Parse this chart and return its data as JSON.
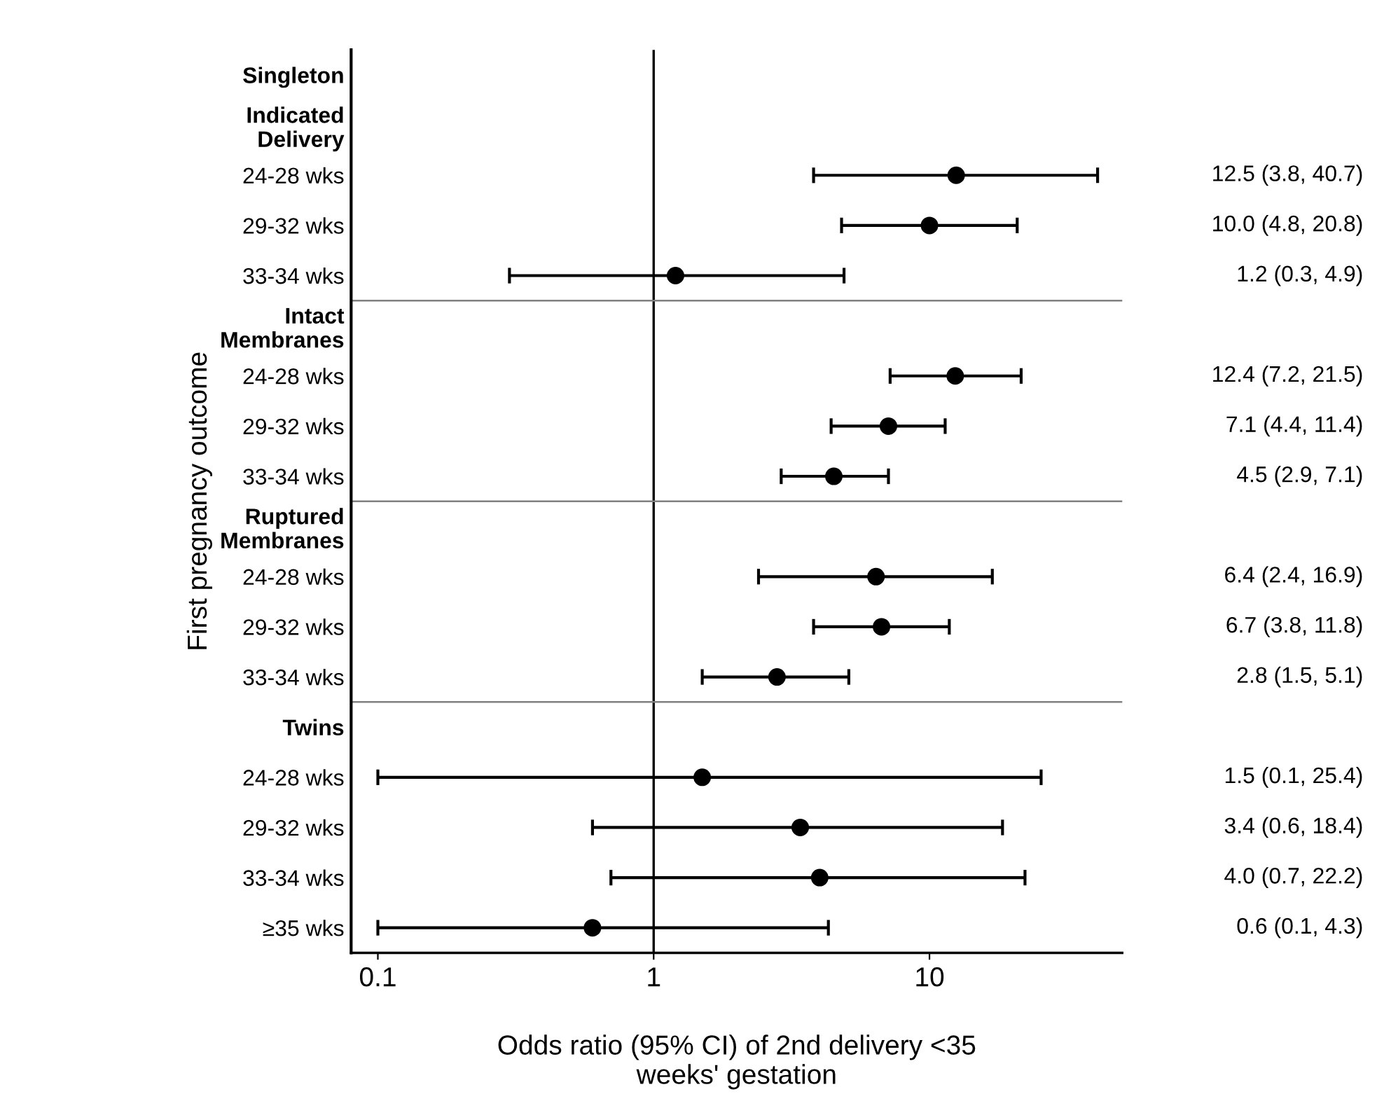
{
  "chart_data": {
    "type": "scatter",
    "orientation": "horizontal",
    "xlabel": "Odds ratio (95% CI) of 2nd delivery <35\nweeks' gestation",
    "ylabel": "First pregnancy outcome",
    "categories": [
      "Singleton",
      "Indicated\nDelivery",
      "24-28 wks",
      "29-32 wks",
      "33-34 wks",
      "Intact\nMembranes",
      "24-28 wks",
      "29-32 wks",
      "33-34 wks",
      "Ruptured\nMembranes",
      "24-28 wks",
      "29-32 wks",
      "33-34 wks",
      "Twins",
      "24-28 wks",
      "29-32 wks",
      "33-34 wks",
      "≥35 wks"
    ],
    "series": [
      {
        "color": "#000000",
        "values": [
          null,
          null,
          12.5,
          10.0,
          1.2,
          null,
          12.4,
          7.1,
          4.5,
          null,
          6.4,
          6.7,
          2.8,
          null,
          1.5,
          3.4,
          4.0,
          0.6
        ],
        "errors": [
          null,
          null,
          [
            3.8,
            40.7
          ],
          [
            4.8,
            20.8
          ],
          [
            0.3,
            4.9
          ],
          null,
          [
            7.2,
            21.5
          ],
          [
            4.4,
            11.4
          ],
          [
            2.9,
            7.1
          ],
          null,
          [
            2.4,
            16.9
          ],
          [
            3.8,
            11.8
          ],
          [
            1.5,
            5.1
          ],
          null,
          [
            0.1,
            25.4
          ],
          [
            0.6,
            18.4
          ],
          [
            0.7,
            22.2
          ],
          [
            0.1,
            4.3
          ]
        ],
        "value_labels": [
          null,
          null,
          "12.5 (3.8, 40.7)",
          "10.0 (4.8, 20.8)",
          "1.2 (0.3, 4.9)",
          null,
          "12.4 (7.2, 21.5)",
          "7.1 (4.4, 11.4)",
          "4.5 (2.9, 7.1)",
          null,
          "6.4 (2.4, 16.9)",
          "6.7 (3.8, 11.8)",
          "2.8 (1.5, 5.1)",
          null,
          "1.5 (0.1, 25.4)",
          "3.4 (0.6, 18.4)",
          "4.0 (0.7, 22.2)",
          "0.6 (0.1, 4.3)"
        ]
      }
    ],
    "log": "x",
    "xlim": [
      0.08,
      50
    ],
    "xticks": [
      0.1,
      1,
      10
    ],
    "ref_lines": [
      {
        "axis": "x",
        "value": 1,
        "color": "#000000"
      }
    ],
    "marker": "circle",
    "grid": false,
    "legend": false
  }
}
